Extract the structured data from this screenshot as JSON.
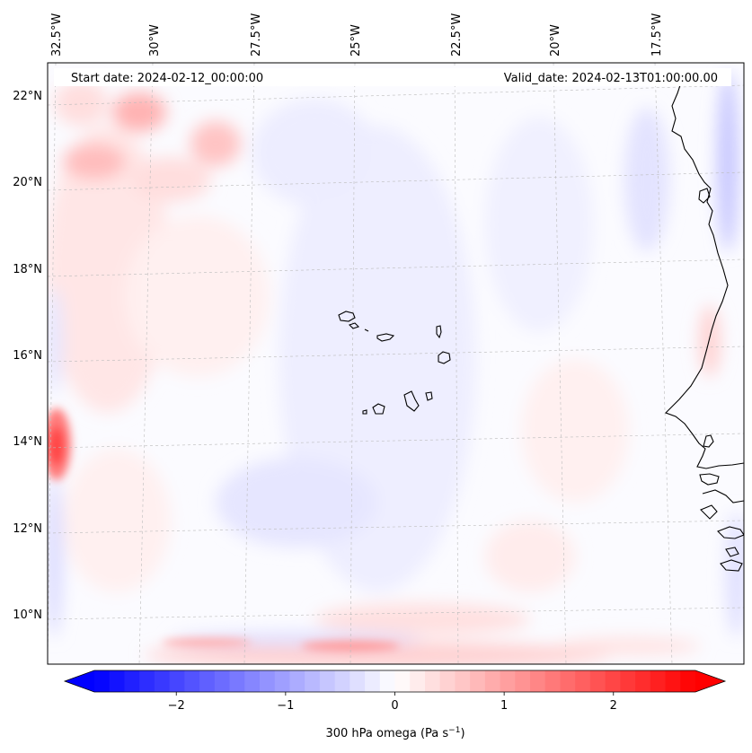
{
  "header": {
    "start_label": "Start date: 2024-02-12_00:00:00",
    "valid_label": "Valid_date: 2024-02-13T01:00:00.00"
  },
  "map": {
    "lon_labels": [
      "32.5°W",
      "30°W",
      "27.5°W",
      "25°W",
      "22.5°W",
      "20°W",
      "17.5°W"
    ],
    "lat_labels": [
      "22°N",
      "20°N",
      "18°N",
      "16°N",
      "14°N",
      "12°N",
      "10°N"
    ]
  },
  "colorbar": {
    "ticks": [
      "−2",
      "−1",
      "0",
      "1",
      "2"
    ],
    "title": "300 hPa omega (Pa s",
    "title_sup": "−1",
    "title_end": ")",
    "min": -2.75,
    "max": 2.75,
    "neg_color": "#0000ff",
    "zero_color": "#ffffff",
    "pos_color": "#ff0000"
  }
}
